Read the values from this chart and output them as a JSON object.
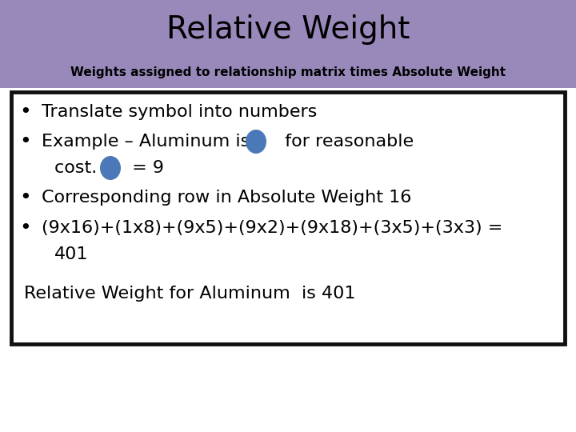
{
  "title": "Relative Weight",
  "subtitle": "Weights assigned to relationship matrix times Absolute Weight",
  "header_bg": "#9989bb",
  "body_bg": "#ffffff",
  "border_color": "#111111",
  "title_color": "#000000",
  "subtitle_color": "#000000",
  "body_text_color": "#000000",
  "circle_color": "#4a78b8",
  "bullet1": "Translate symbol into numbers",
  "bullet2_pre": "Example – Aluminum is",
  "bullet2_post": "  for reasonable",
  "bullet2_line2_pre": "cost.  ",
  "bullet2_line2_post": " = 9",
  "bullet3": "Corresponding row in Absolute Weight 16",
  "bullet4_line1": "(9x16)+(1x8)+(9x5)+(9x2)+(9x18)+(3x5)+(3x3) =",
  "bullet4_line2": "401",
  "footer": "Relative Weight for Aluminum  is 401",
  "title_fontsize": 28,
  "subtitle_fontsize": 11,
  "body_fontsize": 16,
  "footer_fontsize": 16
}
